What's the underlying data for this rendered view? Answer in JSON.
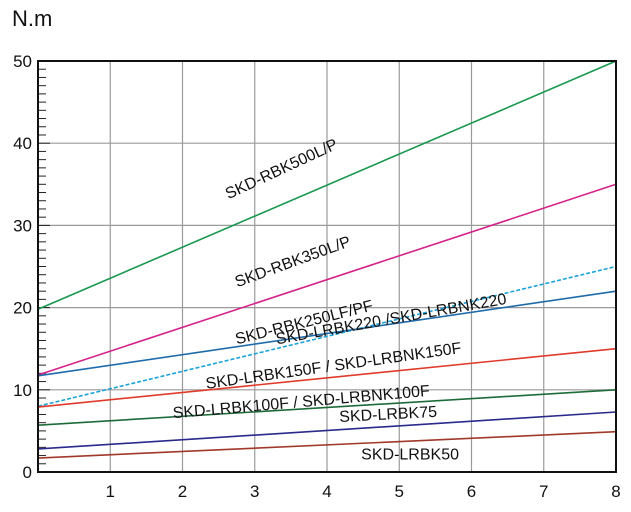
{
  "chart_data": {
    "type": "line",
    "title": "",
    "ylabel": "N.m",
    "xlabel": "",
    "xlim": [
      0,
      8
    ],
    "ylim": [
      0,
      50
    ],
    "x_ticks": [
      1,
      2,
      3,
      4,
      5,
      6,
      7,
      8
    ],
    "y_ticks": [
      0,
      10,
      20,
      30,
      40,
      50
    ],
    "grid": true,
    "series": [
      {
        "name": "SKD-RBK500L/P",
        "color": "#1a9850",
        "x": [
          0,
          8
        ],
        "y": [
          19.8,
          50
        ],
        "label_at": [
          3.4,
          36.3
        ],
        "label_angle": -25
      },
      {
        "name": "SKD-RBK350L/P",
        "color": "#d4238a",
        "x": [
          0,
          8
        ],
        "y": [
          11.8,
          35
        ],
        "label_at": [
          3.55,
          25.0
        ],
        "label_angle": -20
      },
      {
        "name": "SKD-RBK250LF/PF",
        "color": "#1aa3d9",
        "x": [
          0,
          8
        ],
        "y": [
          8.0,
          25
        ],
        "dashed": true,
        "label_at": [
          3.7,
          17.6
        ],
        "label_angle": -14
      },
      {
        "name": "SKD-LRBK220 /SKD-LRBNK220",
        "color": "#1f6bab",
        "x": [
          0,
          8
        ],
        "y": [
          11.7,
          22
        ],
        "label_at": [
          4.9,
          18.0
        ],
        "label_angle": -10
      },
      {
        "name": "SKD-LRBK150F / SKD-LRBNK150F",
        "color": "#e03a2a",
        "x": [
          0,
          8
        ],
        "y": [
          7.9,
          15
        ],
        "label_at": [
          4.1,
          12.3
        ],
        "label_angle": -8
      },
      {
        "name": "SKD-LRBK100F / SKD-LRBNK100F",
        "color": "#1e6b3a",
        "x": [
          0,
          8
        ],
        "y": [
          5.7,
          10
        ],
        "label_at": [
          3.65,
          7.9
        ],
        "label_angle": -5
      },
      {
        "name": "SKD-LRBK75",
        "color": "#2a2a8c",
        "x": [
          0,
          8
        ],
        "y": [
          2.8,
          7.3
        ],
        "label_at": [
          4.85,
          6.4
        ],
        "label_angle": -3
      },
      {
        "name": "SKD-LRBK50",
        "color": "#a0392a",
        "x": [
          0,
          8
        ],
        "y": [
          1.7,
          4.9
        ],
        "label_at": [
          5.15,
          1.5
        ],
        "label_angle": 0
      }
    ]
  }
}
